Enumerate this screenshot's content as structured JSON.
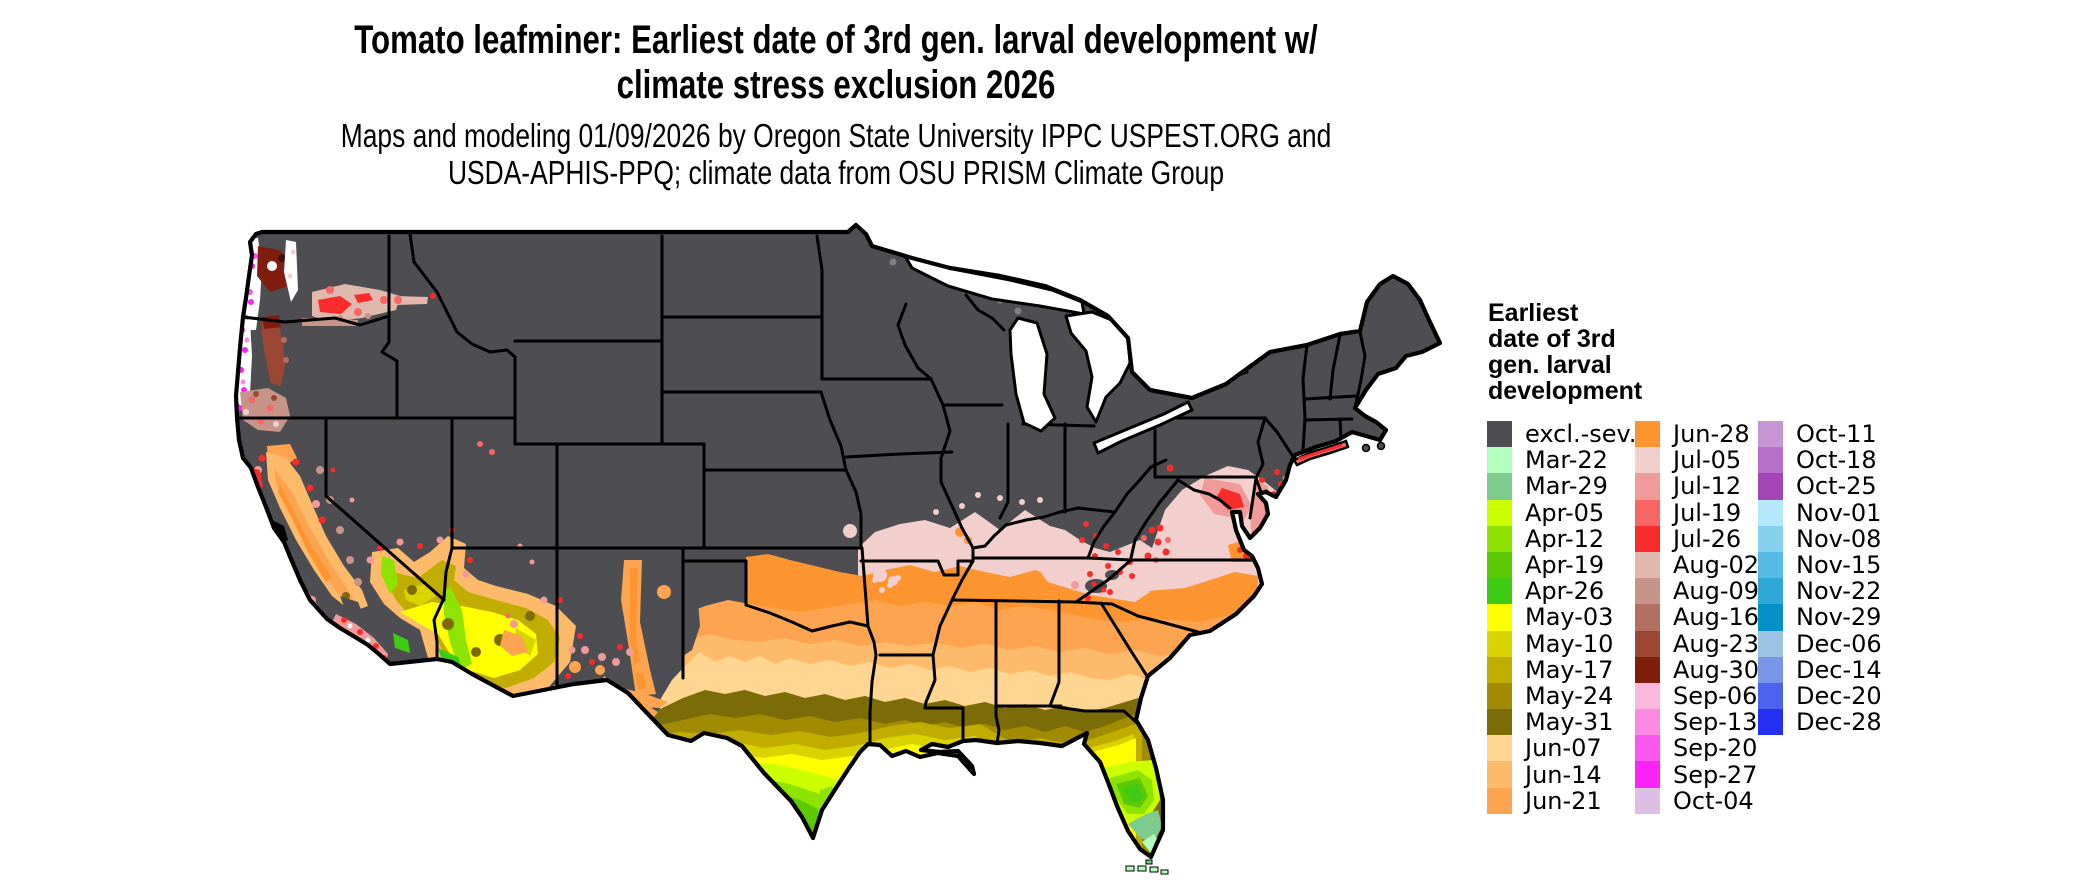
{
  "page": {
    "background": "#ffffff"
  },
  "header": {
    "title_line1": "Tomato leafminer: Earliest date of 3rd gen. larval development w/",
    "title_line2": "climate stress exclusion 2026",
    "subtitle_line1": "Maps and modeling 01/09/2026 by Oregon State University IPPC USPEST.ORG and",
    "subtitle_line2": "USDA-APHIS-PPQ; climate data from OSU PRISM Climate Group"
  },
  "legend": {
    "title_lines": [
      "Earliest",
      "date of 3rd",
      "gen. larval",
      "development"
    ],
    "columns": [
      {
        "entries": [
          {
            "label": "excl.-sev.",
            "color": "#4d4d52"
          },
          {
            "label": "Mar-22",
            "color": "#b3ffbf"
          },
          {
            "label": "Mar-29",
            "color": "#7ecb8f"
          },
          {
            "label": "Apr-05",
            "color": "#ccff00"
          },
          {
            "label": "Apr-12",
            "color": "#8fe303"
          },
          {
            "label": "Apr-19",
            "color": "#5cc905"
          },
          {
            "label": "Apr-26",
            "color": "#3ecb13"
          },
          {
            "label": "May-03",
            "color": "#ffff00"
          },
          {
            "label": "May-10",
            "color": "#d9d400"
          },
          {
            "label": "May-17",
            "color": "#c0ad00"
          },
          {
            "label": "May-24",
            "color": "#a18b00"
          },
          {
            "label": "May-31",
            "color": "#7b6c07"
          },
          {
            "label": "Jun-07",
            "color": "#fed692"
          },
          {
            "label": "Jun-14",
            "color": "#fdba6b"
          },
          {
            "label": "Jun-21",
            "color": "#fca44f"
          }
        ]
      },
      {
        "entries": [
          {
            "label": "Jun-28",
            "color": "#fc9530"
          },
          {
            "label": "Jul-05",
            "color": "#f2cfcc"
          },
          {
            "label": "Jul-12",
            "color": "#f09a9a"
          },
          {
            "label": "Jul-19",
            "color": "#f66666"
          },
          {
            "label": "Jul-26",
            "color": "#fa2b2b"
          },
          {
            "label": "Aug-02",
            "color": "#e0b8ad"
          },
          {
            "label": "Aug-09",
            "color": "#c79489"
          },
          {
            "label": "Aug-16",
            "color": "#b17060"
          },
          {
            "label": "Aug-23",
            "color": "#9b4733"
          },
          {
            "label": "Aug-30",
            "color": "#7f1e0e"
          },
          {
            "label": "Sep-06",
            "color": "#fbb7dc"
          },
          {
            "label": "Sep-13",
            "color": "#fb8ae5"
          },
          {
            "label": "Sep-20",
            "color": "#fb57ef"
          },
          {
            "label": "Sep-27",
            "color": "#fa22f4"
          },
          {
            "label": "Oct-04",
            "color": "#dcbfe3"
          }
        ]
      },
      {
        "entries": [
          {
            "label": "Oct-11",
            "color": "#c896d5"
          },
          {
            "label": "Oct-18",
            "color": "#b770c8"
          },
          {
            "label": "Oct-25",
            "color": "#a246b7"
          },
          {
            "label": "Nov-01",
            "color": "#b5e8fb"
          },
          {
            "label": "Nov-08",
            "color": "#85d1ee"
          },
          {
            "label": "Nov-15",
            "color": "#57bce4"
          },
          {
            "label": "Nov-22",
            "color": "#2fa7d7"
          },
          {
            "label": "Nov-29",
            "color": "#0590c7"
          },
          {
            "label": "Dec-06",
            "color": "#9cc2e4"
          },
          {
            "label": "Dec-14",
            "color": "#7895e8"
          },
          {
            "label": "Dec-20",
            "color": "#4c63ed"
          },
          {
            "label": "Dec-28",
            "color": "#2630f2"
          }
        ]
      }
    ]
  },
  "map": {
    "excluded_severe_color": "#4d4d52",
    "state_border_color": "#000000",
    "water_background_color": "#ffffff"
  }
}
